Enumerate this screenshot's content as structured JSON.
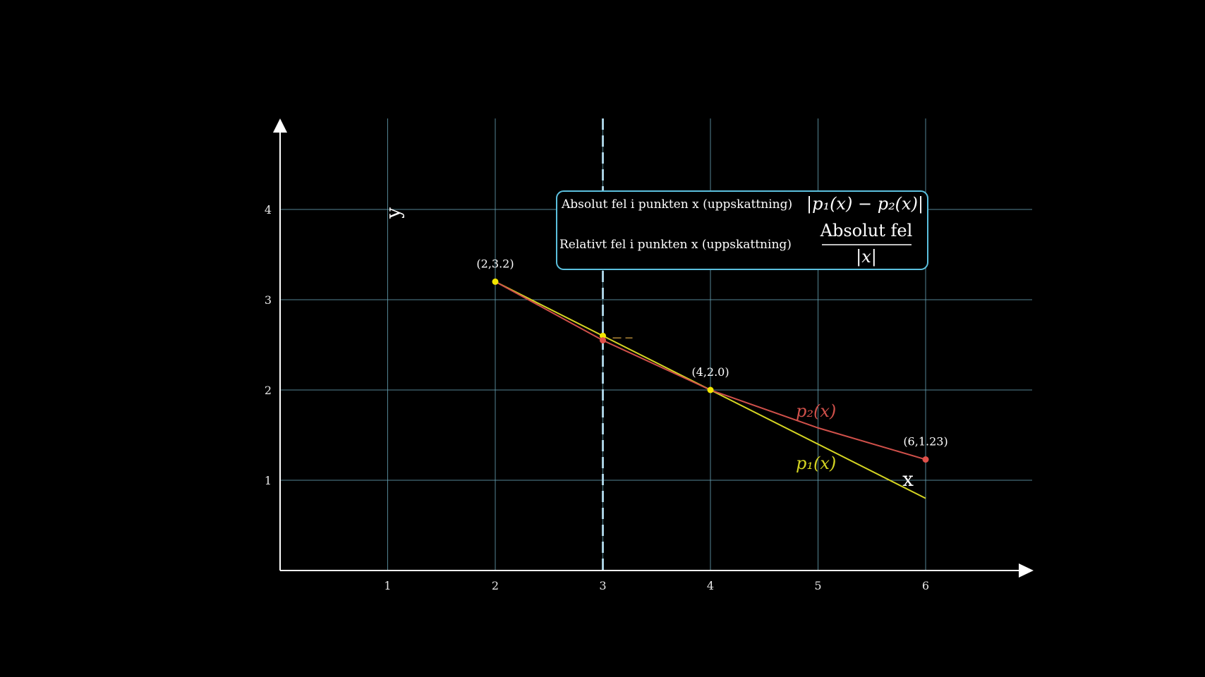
{
  "chart_data": {
    "type": "line",
    "xlim": [
      0,
      7
    ],
    "ylim": [
      0,
      5
    ],
    "x_ticks": [
      1,
      2,
      3,
      4,
      5,
      6
    ],
    "y_ticks": [
      1,
      2,
      3,
      4
    ],
    "grid": true,
    "xlabel": "x",
    "ylabel": "y",
    "vertical_line": {
      "x": 3,
      "style": "dashed"
    },
    "series": [
      {
        "name": "p_1(x)",
        "label_text": "p₁(x)",
        "color": "#d4d422",
        "points": [
          [
            2,
            3.2
          ],
          [
            6,
            0.8
          ]
        ]
      },
      {
        "name": "p_2(x)",
        "label_text": "p₂(x)",
        "color": "#d0504a",
        "points": [
          [
            2,
            3.2
          ],
          [
            3,
            2.55
          ],
          [
            4,
            2.0
          ],
          [
            5,
            1.58
          ],
          [
            6,
            1.23
          ]
        ]
      }
    ],
    "points": [
      {
        "x": 2,
        "y": 3.2,
        "label": "(2,3.2)",
        "color": "#f2e600"
      },
      {
        "x": 4,
        "y": 2.0,
        "label": "(4,2.0)",
        "color": "#f2e600"
      },
      {
        "x": 6,
        "y": 1.23,
        "label": "(6,1.23)",
        "color": "#e0504a"
      },
      {
        "x": 3,
        "y": 2.6,
        "label": "",
        "color": "#f2e600"
      },
      {
        "x": 3,
        "y": 2.55,
        "label": "",
        "color": "#e0504a"
      }
    ],
    "legend_box": {
      "line1_text": "Absolut fel i punkten x (uppskattning)",
      "line1_math": "|p₁(x) − p₂(x)|",
      "line2_text": "Relativt fel i punkten x (uppskattning)",
      "line2_numerator": "Absolut fel",
      "line2_denominator": "|x|",
      "border_color": "#5bc0de",
      "placement": "top-center"
    },
    "colors": {
      "background": "#000000",
      "axes": "#ffffff",
      "grid": "#6aa7b8",
      "vline": "#a9cfe0"
    }
  }
}
